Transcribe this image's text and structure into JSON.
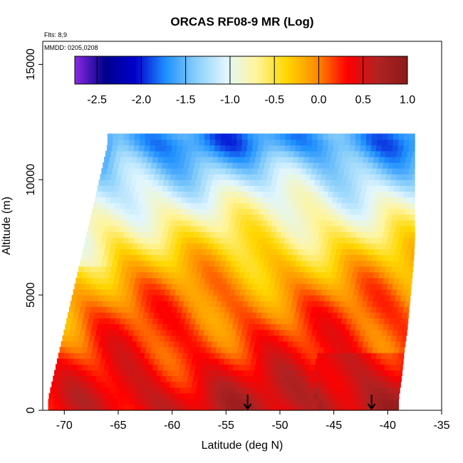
{
  "chart_data": {
    "type": "heatmap",
    "title": "ORCAS RF08-9 MR (Log)",
    "xlabel": "Latitude (deg N)",
    "ylabel": "Altitude (m)",
    "flights_note": "Flts: 8,9",
    "dates_note": "MMDD: 0205,0208",
    "xlim": [
      -72,
      -35
    ],
    "ylim": [
      0,
      16000
    ],
    "x_ticks": [
      -70,
      -65,
      -60,
      -55,
      -50,
      -45,
      -40,
      -35
    ],
    "y_ticks": [
      0,
      5000,
      10000,
      15000
    ],
    "colorbar": {
      "ticks": [
        -2.5,
        -2.0,
        -1.5,
        -1.0,
        -0.5,
        0.0,
        0.5,
        1.0
      ],
      "tick_labels": [
        "-2.5",
        "-2.0",
        "-1.5",
        "-1.0",
        "-0.5",
        "0.0",
        "0.5",
        "1.0"
      ],
      "range": [
        -2.75,
        1.0
      ],
      "colors": [
        "#8a2be2",
        "#00008b",
        "#0000cd",
        "#1e90ff",
        "#87cefa",
        "#e0f6ff",
        "#fff59d",
        "#ffd700",
        "#ff8c00",
        "#ff0000",
        "#b22222",
        "#8b1a1a"
      ]
    },
    "profile": {
      "altitude_m": [
        500,
        1500,
        2500,
        3500,
        4500,
        5500,
        6500,
        7500,
        8500,
        9500,
        10500,
        11500
      ],
      "log_mr": [
        0.55,
        0.4,
        0.25,
        0.15,
        0.05,
        -0.1,
        -0.3,
        -0.55,
        -0.8,
        -1.05,
        -1.35,
        -1.7
      ],
      "south_edge_lat": [
        -71.5,
        -71.0,
        -70.5,
        -70.0,
        -69.5,
        -69.0,
        -68.5,
        -68.0,
        -67.5,
        -67.0,
        -66.5,
        -66.0
      ],
      "north_edge_lat": [
        -39.0,
        -38.7,
        -38.5,
        -38.2,
        -38.0,
        -37.8,
        -37.6,
        -37.5,
        -37.5,
        -37.5,
        -37.5,
        -37.5
      ]
    },
    "arrow_markers_lat": [
      -53,
      -41.5
    ]
  }
}
